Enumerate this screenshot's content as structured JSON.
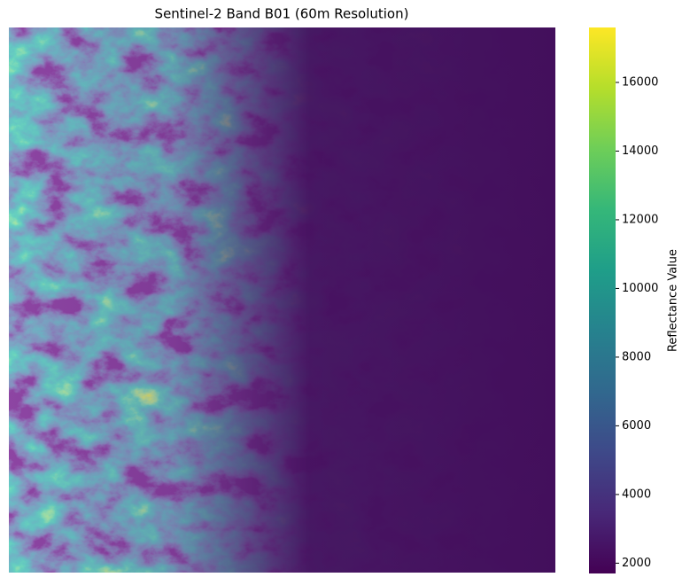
{
  "chart_data": {
    "type": "image",
    "title": "Sentinel-2 Band B01 (60m Resolution)",
    "colorbar_label": "Reflectance Value",
    "colormap": "viridis",
    "clim": [
      1700,
      17600
    ],
    "cticks": [
      2000,
      4000,
      6000,
      8000,
      10000,
      12000,
      14000,
      16000
    ]
  }
}
